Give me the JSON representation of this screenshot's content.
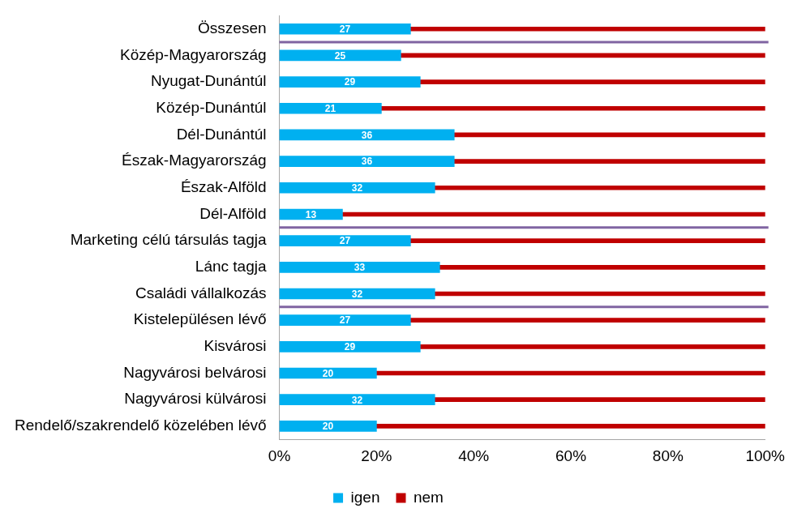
{
  "chart_data": {
    "type": "bar",
    "orientation": "horizontal",
    "stacked": true,
    "categories": [
      "Összesen",
      "Közép-Magyarország",
      "Nyugat-Dunántúl",
      "Közép-Dunántúl",
      "Dél-Dunántúl",
      "Észak-Magyarország",
      "Észak-Alföld",
      "Dél-Alföld",
      "Marketing célú társulás tagja",
      "Lánc tagja",
      "Családi vállalkozás",
      "Kistelepülésen lévő",
      "Kisvárosi",
      "Nagyvárosi belvárosi",
      "Nagyvárosi külvárosi",
      "Rendelő/szakrendelő közelében lévő"
    ],
    "series": [
      {
        "name": "igen",
        "color": "#00b0f0",
        "data_labels": true,
        "values": [
          27,
          25,
          29,
          21,
          36,
          36,
          32,
          13,
          27,
          33,
          32,
          27,
          29,
          20,
          32,
          20
        ]
      },
      {
        "name": "nem",
        "color": "#c00000",
        "data_labels": false,
        "values": [
          73,
          75,
          71,
          79,
          64,
          64,
          68,
          87,
          73,
          67,
          68,
          73,
          71,
          80,
          68,
          80
        ]
      }
    ],
    "xlim": [
      0,
      100
    ],
    "xticks": [
      {
        "value": 0,
        "label": "0%"
      },
      {
        "value": 20,
        "label": "20%"
      },
      {
        "value": 40,
        "label": "40%"
      },
      {
        "value": 60,
        "label": "60%"
      },
      {
        "value": 80,
        "label": "80%"
      },
      {
        "value": 100,
        "label": "100%"
      }
    ],
    "grid": false,
    "legend": "bottom"
  }
}
